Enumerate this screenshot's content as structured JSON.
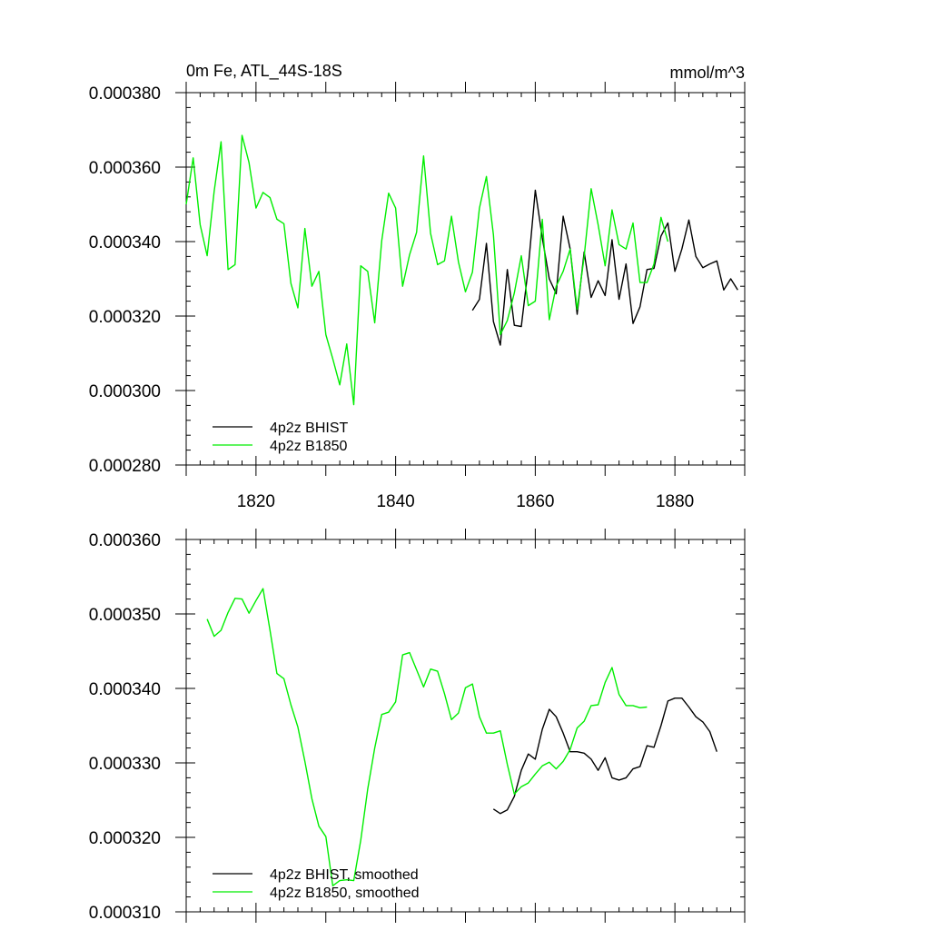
{
  "chart_data": [
    {
      "type": "line",
      "title_left": "0m Fe, ATL_44S-18S",
      "title_right": "mmol/m^3",
      "xlabel": "",
      "ylabel": "",
      "xlim": [
        1810,
        1890
      ],
      "ylim": [
        0.00028,
        0.00038
      ],
      "yticks": [
        "0.000280",
        "0.000300",
        "0.000320",
        "0.000340",
        "0.000360",
        "0.000380"
      ],
      "xticks": [
        "1820",
        "1840",
        "1860",
        "1880"
      ],
      "legend_position": "bottom-left",
      "series": [
        {
          "name": "4p2z BHIST",
          "color": "#000000",
          "x": [
            1851,
            1852,
            1853,
            1854,
            1855,
            1856,
            1857,
            1858,
            1859,
            1860,
            1861,
            1862,
            1863,
            1864,
            1865,
            1866,
            1867,
            1868,
            1869,
            1870,
            1871,
            1872,
            1873,
            1874,
            1875,
            1876,
            1877,
            1878,
            1879,
            1880,
            1881,
            1882,
            1883,
            1884,
            1885,
            1886,
            1887,
            1888,
            1889
          ],
          "values": [
            0.0003215,
            0.0003245,
            0.0003395,
            0.0003185,
            0.0003122,
            0.0003325,
            0.0003175,
            0.0003172,
            0.000333,
            0.0003538,
            0.000341,
            0.00033,
            0.000326,
            0.0003468,
            0.000338,
            0.0003205,
            0.0003372,
            0.000325,
            0.0003295,
            0.0003255,
            0.0003405,
            0.0003245,
            0.000334,
            0.000318,
            0.0003225,
            0.0003325,
            0.0003328,
            0.0003415,
            0.000345,
            0.000332,
            0.000338,
            0.0003458,
            0.000336,
            0.000333,
            0.000334,
            0.0003348,
            0.000327,
            0.00033,
            0.000327
          ]
        },
        {
          "name": "4p2z B1850",
          "color": "#00ee00",
          "x": [
            1810,
            1811,
            1812,
            1813,
            1814,
            1815,
            1816,
            1817,
            1818,
            1819,
            1820,
            1821,
            1822,
            1823,
            1824,
            1825,
            1826,
            1827,
            1828,
            1829,
            1830,
            1831,
            1832,
            1833,
            1834,
            1835,
            1836,
            1837,
            1838,
            1839,
            1840,
            1841,
            1842,
            1843,
            1844,
            1845,
            1846,
            1847,
            1848,
            1849,
            1850,
            1851,
            1852,
            1853,
            1854,
            1855,
            1856,
            1857,
            1858,
            1859,
            1860,
            1861,
            1862,
            1863,
            1864,
            1865,
            1866,
            1867,
            1868,
            1869,
            1870,
            1871,
            1872,
            1873,
            1874,
            1875,
            1876,
            1877,
            1878,
            1879
          ],
          "values": [
            0.00035,
            0.0003625,
            0.0003445,
            0.0003362,
            0.0003535,
            0.0003668,
            0.0003325,
            0.0003338,
            0.0003685,
            0.0003612,
            0.000349,
            0.0003532,
            0.0003518,
            0.000346,
            0.0003448,
            0.0003288,
            0.0003222,
            0.0003435,
            0.000328,
            0.000332,
            0.000315,
            0.0003085,
            0.0003015,
            0.0003125,
            0.0002962,
            0.0003335,
            0.000332,
            0.0003182,
            0.0003402,
            0.000353,
            0.000349,
            0.000328,
            0.0003365,
            0.0003425,
            0.000363,
            0.0003422,
            0.0003338,
            0.0003348,
            0.0003468,
            0.0003345,
            0.0003265,
            0.0003318,
            0.000349,
            0.0003575,
            0.0003418,
            0.000315,
            0.0003188,
            0.0003262,
            0.0003362,
            0.0003228,
            0.000324,
            0.000346,
            0.000319,
            0.000328,
            0.000332,
            0.000338,
            0.0003218,
            0.000336,
            0.0003542,
            0.0003445,
            0.0003335,
            0.0003485,
            0.0003392,
            0.000338,
            0.000345,
            0.000329,
            0.000329,
            0.000334,
            0.0003465,
            0.00034
          ]
        }
      ]
    },
    {
      "type": "line",
      "title_left": "",
      "title_right": "",
      "xlabel": "",
      "ylabel": "",
      "xlim": [
        1810,
        1890
      ],
      "ylim": [
        0.00031,
        0.00036
      ],
      "yticks": [
        "0.000310",
        "0.000320",
        "0.000330",
        "0.000340",
        "0.000350",
        "0.000360"
      ],
      "xticks": [],
      "legend_position": "bottom-left",
      "series": [
        {
          "name": "4p2z BHIST, smoothed",
          "color": "#000000",
          "x": [
            1854,
            1855,
            1856,
            1857,
            1858,
            1859,
            1860,
            1861,
            1862,
            1863,
            1864,
            1865,
            1866,
            1867,
            1868,
            1869,
            1870,
            1871,
            1872,
            1873,
            1874,
            1875,
            1876,
            1877,
            1878,
            1879,
            1880,
            1881,
            1882,
            1883,
            1884,
            1885,
            1886
          ],
          "values": [
            0.0003238,
            0.0003232,
            0.0003237,
            0.0003255,
            0.000329,
            0.0003312,
            0.0003305,
            0.0003345,
            0.0003372,
            0.0003362,
            0.000334,
            0.0003315,
            0.0003315,
            0.0003313,
            0.0003305,
            0.000329,
            0.0003307,
            0.000328,
            0.0003277,
            0.000328,
            0.0003292,
            0.0003295,
            0.0003323,
            0.0003321,
            0.000335,
            0.0003383,
            0.0003387,
            0.0003387,
            0.0003375,
            0.0003362,
            0.0003355,
            0.0003342,
            0.0003315
          ]
        },
        {
          "name": "4p2z B1850, smoothed",
          "color": "#00ee00",
          "x": [
            1813,
            1814,
            1815,
            1816,
            1817,
            1818,
            1819,
            1820,
            1821,
            1822,
            1823,
            1824,
            1825,
            1826,
            1827,
            1828,
            1829,
            1830,
            1831,
            1832,
            1833,
            1834,
            1835,
            1836,
            1837,
            1838,
            1839,
            1840,
            1841,
            1842,
            1843,
            1844,
            1845,
            1846,
            1847,
            1848,
            1849,
            1850,
            1851,
            1852,
            1853,
            1854,
            1855,
            1856,
            1857,
            1858,
            1859,
            1860,
            1861,
            1862,
            1863,
            1864,
            1865,
            1866,
            1867,
            1868,
            1869,
            1870,
            1871,
            1872,
            1873,
            1874,
            1875,
            1876
          ],
          "values": [
            0.0003493,
            0.000347,
            0.0003478,
            0.0003502,
            0.0003521,
            0.000352,
            0.0003501,
            0.0003518,
            0.0003534,
            0.0003478,
            0.000342,
            0.0003413,
            0.0003378,
            0.0003348,
            0.0003302,
            0.0003252,
            0.0003215,
            0.0003201,
            0.0003135,
            0.0003142,
            0.0003143,
            0.0003142,
            0.0003196,
            0.0003265,
            0.000332,
            0.0003365,
            0.0003368,
            0.0003382,
            0.0003445,
            0.0003448,
            0.0003425,
            0.0003402,
            0.0003426,
            0.0003423,
            0.0003393,
            0.0003358,
            0.0003367,
            0.0003401,
            0.0003406,
            0.0003362,
            0.000334,
            0.000334,
            0.0003343,
            0.0003298,
            0.0003258,
            0.0003268,
            0.0003273,
            0.0003285,
            0.0003296,
            0.0003301,
            0.0003292,
            0.0003302,
            0.0003318,
            0.0003347,
            0.0003356,
            0.0003377,
            0.0003378,
            0.0003408,
            0.0003428,
            0.0003392,
            0.0003377,
            0.0003377,
            0.0003374,
            0.0003375
          ]
        }
      ]
    }
  ]
}
